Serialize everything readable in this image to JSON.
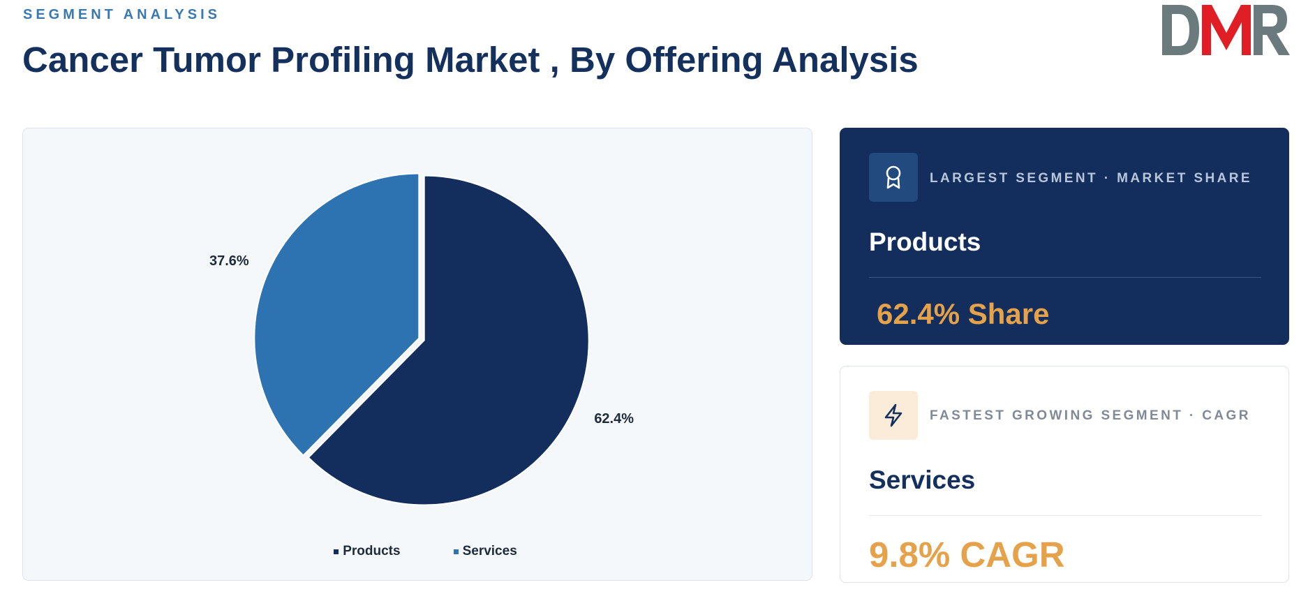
{
  "header": {
    "eyebrow": "SEGMENT ANALYSIS",
    "title": "Cancer Tumor Profiling Market , By Offering Analysis",
    "logo_text": "DMR"
  },
  "colors": {
    "products": "#132e5c",
    "services": "#2e73b1",
    "accent": "#e6a24a",
    "logo_gray": "#6b7a7c",
    "logo_red": "#e01e25"
  },
  "chart_data": {
    "type": "pie",
    "categories": [
      "Products",
      "Services"
    ],
    "values": [
      62.4,
      37.6
    ],
    "labels": [
      "62.4%",
      "37.6%"
    ],
    "title": "",
    "legend": "bottom"
  },
  "cards": {
    "largest": {
      "icon": "award-icon",
      "label": "LARGEST SEGMENT · MARKET SHARE",
      "segment": "Products",
      "metric": "62.4% Share"
    },
    "fastest": {
      "icon": "lightning-icon",
      "label": "FASTEST GROWING SEGMENT · CAGR",
      "segment": "Services",
      "metric": "9.8% CAGR"
    }
  }
}
